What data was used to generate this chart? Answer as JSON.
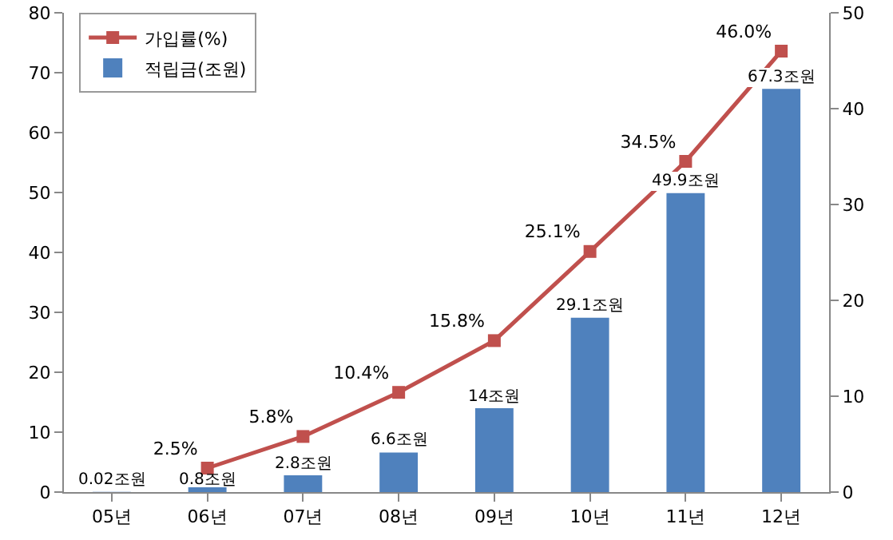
{
  "chart_data": {
    "type": "bar",
    "categories": [
      "05년",
      "06년",
      "07년",
      "08년",
      "09년",
      "10년",
      "11년",
      "12년"
    ],
    "series": [
      {
        "name": "적립금(조원)",
        "type": "bar",
        "color": "#4f81bd",
        "values": [
          0.02,
          0.8,
          2.8,
          6.6,
          14,
          29.1,
          49.9,
          67.3
        ],
        "value_labels": [
          "0.02조원",
          "0.8조원",
          "2.8조원",
          "6.6조원",
          "14조원",
          "29.1조원",
          "49.9조원",
          "67.3조원"
        ]
      },
      {
        "name": "가입률(%)",
        "type": "line",
        "axis": "y2",
        "color": "#c0504d",
        "marker": "square",
        "values": [
          null,
          2.5,
          5.8,
          10.4,
          15.8,
          25.1,
          34.5,
          46.0
        ],
        "value_labels": [
          null,
          "2.5%",
          "5.8%",
          "10.4%",
          "15.8%",
          "25.1%",
          "34.5%",
          "46.0%"
        ]
      }
    ],
    "ylim": [
      0,
      80
    ],
    "yticks": [
      0,
      10,
      20,
      30,
      40,
      50,
      60,
      70,
      80
    ],
    "y2lim": [
      0,
      50
    ],
    "y2ticks": [
      0,
      10,
      20,
      30,
      40,
      50
    ],
    "grid": false,
    "legend": "top left"
  }
}
